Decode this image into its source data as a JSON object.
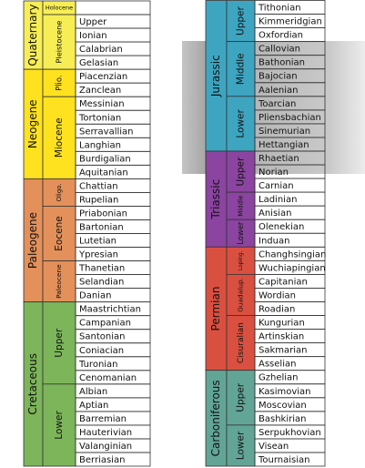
{
  "left": {
    "periods": [
      {
        "name": "Quaternary",
        "color": "#f7ee55",
        "epochs": [
          {
            "name": "Holocene",
            "stages": []
          },
          {
            "name": "Pleistocene",
            "stages": [
              "Upper",
              "Ionian",
              "Calabrian",
              "Gelasian"
            ]
          }
        ]
      },
      {
        "name": "Neogene",
        "color": "#ffe21f",
        "epochs": [
          {
            "name": "Plio.",
            "stages": [
              "Piacenzian",
              "Zanclean"
            ]
          },
          {
            "name": "Miocene",
            "stages": [
              "Messinian",
              "Tortonian",
              "Serravallian",
              "Langhian",
              "Burdigalian",
              "Aquitanian"
            ]
          }
        ]
      },
      {
        "name": "Paleogene",
        "color": "#e3905a",
        "epochs": [
          {
            "name": "Oligo.",
            "stages": [
              "Chattian",
              "Rupelian"
            ]
          },
          {
            "name": "Eocene",
            "stages": [
              "Priabonian",
              "Bartonian",
              "Lutetian",
              "Ypresian"
            ]
          },
          {
            "name": "Paleocene",
            "stages": [
              "Thanetian",
              "Selandian",
              "Danian"
            ]
          }
        ]
      },
      {
        "name": "Cretaceous",
        "color": "#7db55a",
        "epochs": [
          {
            "name": "Upper",
            "stages": [
              "Maastrichtian",
              "Campanian",
              "Santonian",
              "Coniacian",
              "Turonian",
              "Cenomanian"
            ]
          },
          {
            "name": "Lower",
            "stages": [
              "Albian",
              "Aptian",
              "Barremian",
              "Hauterivian",
              "Valanginian",
              "Berriasian"
            ]
          }
        ]
      }
    ]
  },
  "right": {
    "periods": [
      {
        "name": "Jurassic",
        "color": "#3ea5c1",
        "epochs": [
          {
            "name": "Upper",
            "stages": [
              "Tithonian",
              "Kimmeridgian",
              "Oxfordian"
            ]
          },
          {
            "name": "Middle",
            "stages": [
              "Callovian",
              "Bathonian",
              "Bajocian",
              "Aalenian"
            ]
          },
          {
            "name": "Lower",
            "stages": [
              "Toarcian",
              "Pliensbachian",
              "Sinemurian",
              "Hettangian"
            ]
          }
        ]
      },
      {
        "name": "Triassic",
        "color": "#8b44a0",
        "epochs": [
          {
            "name": "Upper",
            "stages": [
              "Rhaetian",
              "Norian",
              "Carnian"
            ]
          },
          {
            "name": "Middle",
            "stages": [
              "Ladinian",
              "Anisian"
            ]
          },
          {
            "name": "Lower",
            "stages": [
              "Olenekian",
              "Induan"
            ]
          }
        ]
      },
      {
        "name": "Permian",
        "color": "#da5040",
        "epochs": [
          {
            "name": "Loping.",
            "stages": [
              "Changhsingian",
              "Wuchiapingian"
            ]
          },
          {
            "name": "Guadalup.",
            "stages": [
              "Capitanian",
              "Wordian",
              "Roadian"
            ]
          },
          {
            "name": "Cisuralian",
            "stages": [
              "Kungurian",
              "Artinskian",
              "Sakmarian",
              "Asselian"
            ]
          }
        ]
      },
      {
        "name": "Carboniferous",
        "color": "#62a596",
        "epochs": [
          {
            "name": "Upper",
            "stages": [
              "Gzhelian",
              "Kasimovian",
              "Moscovian",
              "Bashkirian"
            ]
          },
          {
            "name": "Lower",
            "stages": [
              "Serpukhovian",
              "Visean",
              "Tournaisian"
            ]
          }
        ]
      }
    ]
  }
}
